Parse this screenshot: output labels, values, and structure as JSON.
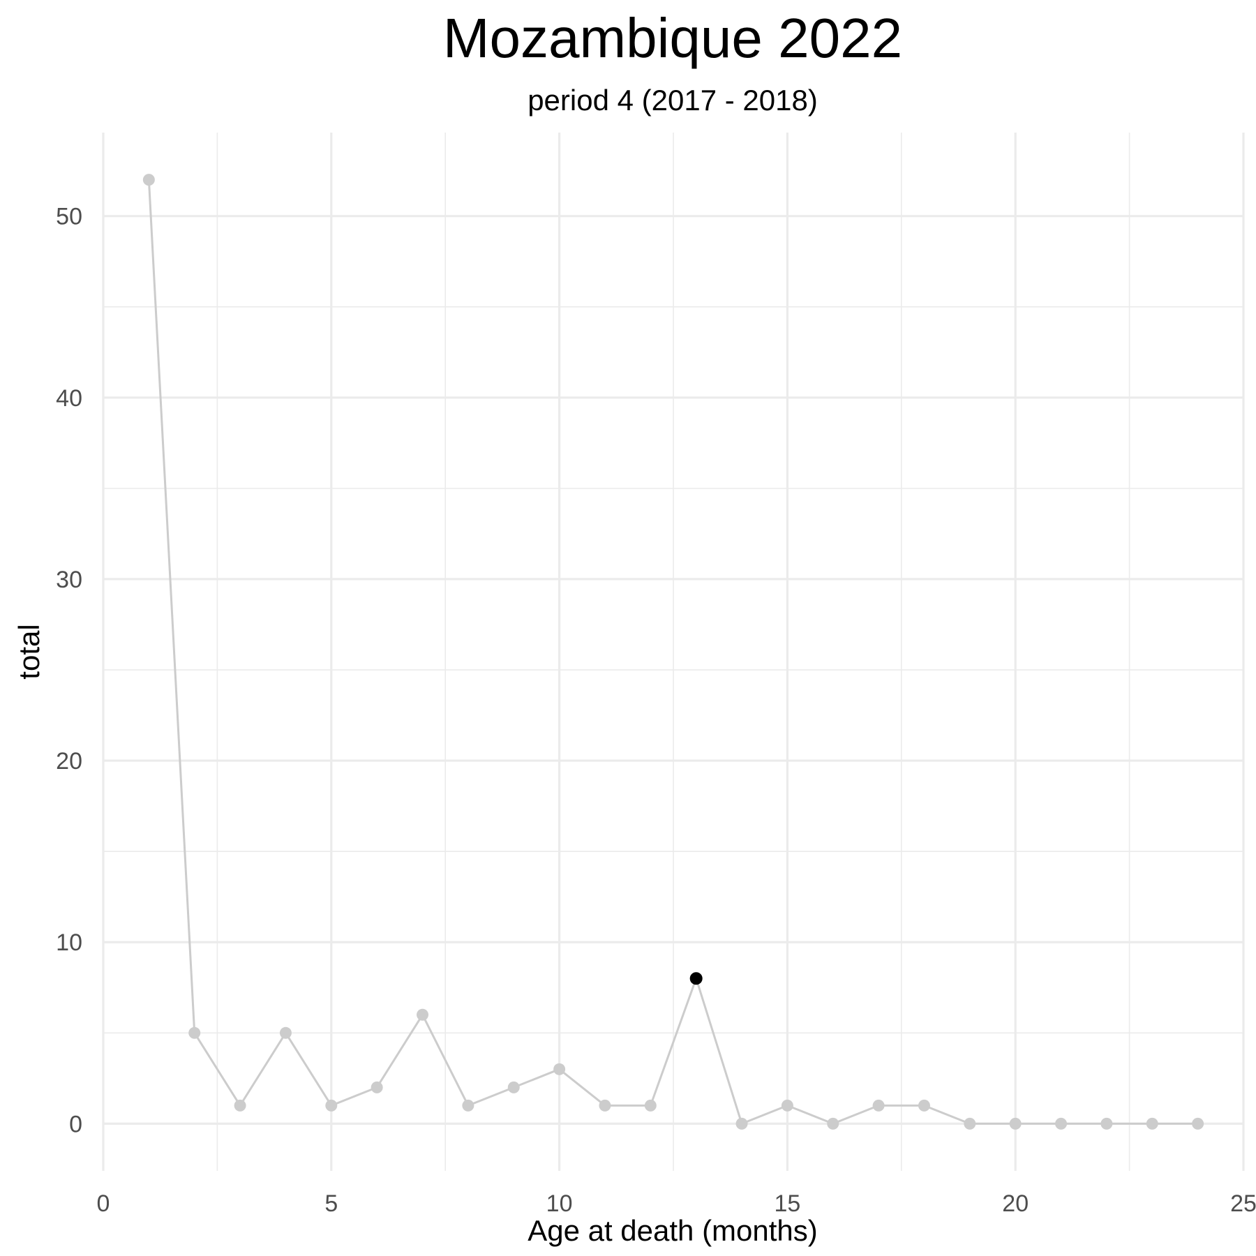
{
  "chart_data": {
    "type": "line",
    "title": "Mozambique 2022",
    "subtitle": "period 4 (2017 - 2018)",
    "xlabel": "Age at death (months)",
    "ylabel": "total",
    "xlim": [
      0,
      25
    ],
    "ylim": [
      -2.6,
      54.6
    ],
    "x_ticks": [
      0,
      5,
      10,
      15,
      20,
      25
    ],
    "y_ticks": [
      0,
      10,
      20,
      30,
      40,
      50
    ],
    "grid": true,
    "series": [
      {
        "x": [
          1,
          2,
          3,
          4,
          5,
          6,
          7,
          8,
          9,
          10,
          11,
          12,
          13,
          14,
          15,
          16,
          17,
          18,
          19,
          20,
          21,
          22,
          23,
          24
        ],
        "y": [
          52,
          5,
          1,
          5,
          1,
          2,
          6,
          1,
          2,
          3,
          1,
          1,
          8,
          0,
          1,
          0,
          1,
          1,
          0,
          0,
          0,
          0,
          0,
          0
        ],
        "color": "#cccccc"
      }
    ],
    "highlight": {
      "x": 13,
      "y": 8,
      "color": "#000000"
    },
    "colors": {
      "grid": "#ebebeb",
      "line": "#cccccc",
      "highlight": "#000000",
      "tick_text": "#4d4d4d"
    }
  }
}
